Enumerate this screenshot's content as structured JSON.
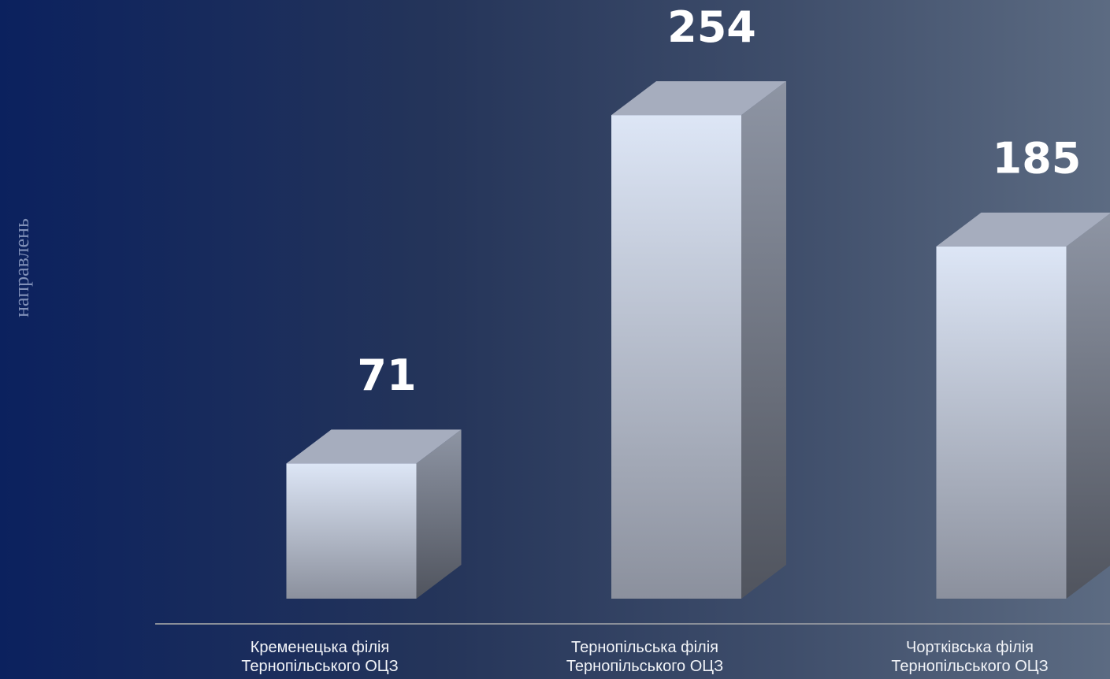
{
  "chart_data": {
    "type": "bar3d",
    "y_label": "направлень",
    "categories": [
      "Кременецька філія\nТернопільського ОЦЗ",
      "Тернопільська філія\nТернопільського ОЦЗ",
      "Чортківська філія\nТернопільського ОЦЗ"
    ],
    "values": [
      71,
      254,
      185
    ],
    "color": "#dde6f6",
    "ylim": [
      0,
      300
    ]
  }
}
